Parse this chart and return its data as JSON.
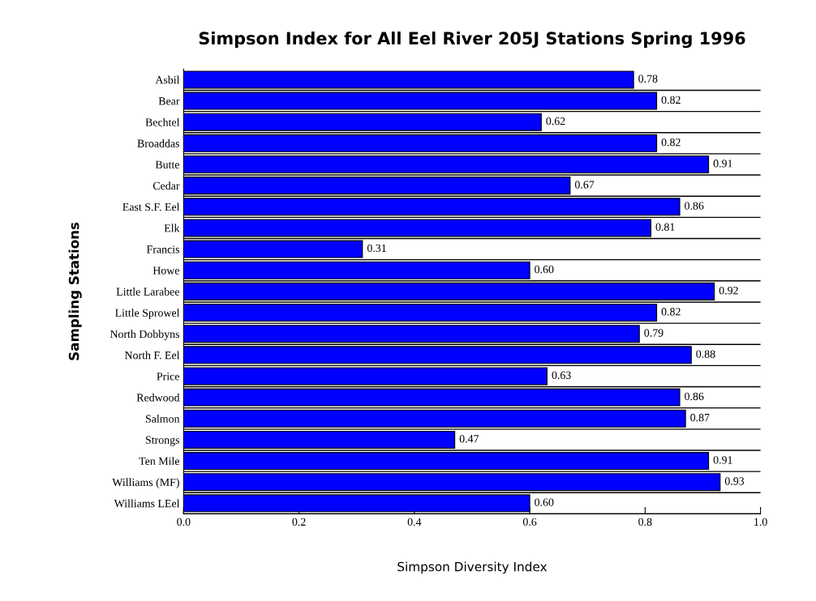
{
  "chart_data": {
    "type": "bar",
    "orientation": "horizontal",
    "title": "Simpson Index for All Eel River 205J Stations Spring 1996",
    "xlabel": "Simpson Diversity Index",
    "ylabel": "Sampling Stations",
    "categories": [
      "Asbil",
      "Bear",
      "Bechtel",
      "Broaddas",
      "Butte",
      "Cedar",
      "East S.F. Eel",
      "Elk",
      "Francis",
      "Howe",
      "Little Larabee",
      "Little Sprowel",
      "North Dobbyns",
      "North F. Eel",
      "Price",
      "Redwood",
      "Salmon",
      "Strongs",
      "Ten Mile",
      "Williams (MF)",
      "Williams LEel"
    ],
    "values": [
      0.78,
      0.82,
      0.62,
      0.82,
      0.91,
      0.67,
      0.86,
      0.81,
      0.31,
      0.6,
      0.92,
      0.82,
      0.79,
      0.88,
      0.63,
      0.86,
      0.87,
      0.47,
      0.91,
      0.93,
      0.6
    ],
    "value_labels": [
      "0.78",
      "0.82",
      "0.62",
      "0.82",
      "0.91",
      "0.67",
      "0.86",
      "0.81",
      "0.31",
      "0.60",
      "0.92",
      "0.82",
      "0.79",
      "0.88",
      "0.63",
      "0.86",
      "0.87",
      "0.47",
      "0.91",
      "0.93",
      "0.60"
    ],
    "color": "#0000ff",
    "xlim": [
      0,
      1
    ],
    "xticks": [
      {
        "value": 0,
        "label": "0.0"
      },
      {
        "value": 0.2,
        "label": "0.2"
      },
      {
        "value": 0.4,
        "label": "0.4"
      },
      {
        "value": 0.6,
        "label": "0.6"
      },
      {
        "value": 0.8,
        "label": "0.8"
      },
      {
        "value": 1,
        "label": "1.0"
      }
    ],
    "grid": "y"
  }
}
